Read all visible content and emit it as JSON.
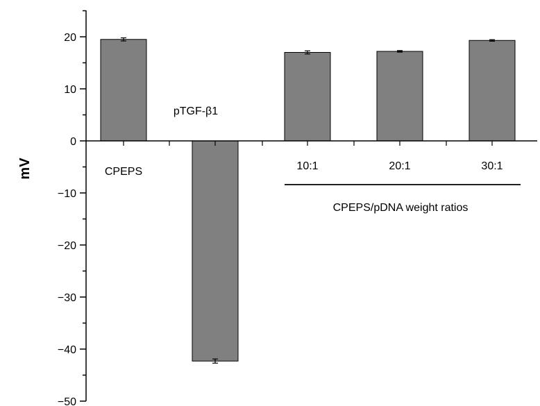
{
  "chart_data": {
    "type": "bar",
    "title": "",
    "xlabel": "",
    "ylabel": "mV",
    "ylim": [
      -50,
      25
    ],
    "yticks": [
      "−50",
      "−40",
      "−30",
      "−20",
      "−10",
      "0",
      "10",
      "20"
    ],
    "grid": false,
    "categories": [
      "CPEPS",
      "pTGF-β1",
      "10:1",
      "20:1",
      "30:1"
    ],
    "values": [
      19.5,
      -42.3,
      17.0,
      17.2,
      19.3
    ],
    "errors": [
      0.3,
      0.4,
      0.3,
      0.15,
      0.15
    ],
    "group_label": "CPEPS/pDNA weight ratios",
    "colors": {
      "bar": "#808080",
      "bar_stroke": "#000000",
      "axis": "#000000"
    }
  }
}
